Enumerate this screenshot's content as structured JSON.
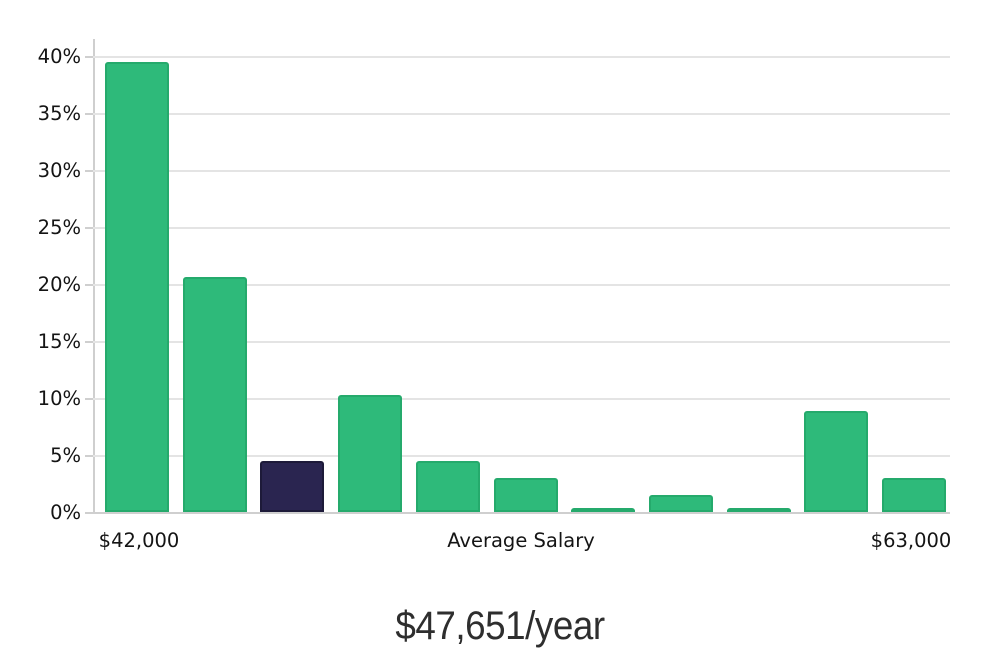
{
  "chart_data": {
    "type": "bar",
    "description": "Salary distribution histogram with one highlighted bucket",
    "values": [
      39.5,
      20.6,
      4.5,
      10.3,
      4.5,
      3.0,
      0.2,
      1.5,
      0.2,
      8.9,
      3.0
    ],
    "value_unit": "percent",
    "highlighted_bar_index": 2,
    "ylim": [
      0,
      40
    ],
    "grid": "horizontal",
    "legend": "none",
    "y_ticks": [
      {
        "value": 0,
        "label": "0%"
      },
      {
        "value": 5,
        "label": "5%"
      },
      {
        "value": 10,
        "label": "10%"
      },
      {
        "value": 15,
        "label": "15%"
      },
      {
        "value": 20,
        "label": "20%"
      },
      {
        "value": 25,
        "label": "25%"
      },
      {
        "value": 30,
        "label": "30%"
      },
      {
        "value": 35,
        "label": "35%"
      },
      {
        "value": 40,
        "label": "40%"
      }
    ],
    "x_tick_labels": [
      {
        "text": "$42,000",
        "anchor": "first-bar"
      },
      {
        "text": "Average Salary",
        "anchor": "center"
      },
      {
        "text": "$63,000",
        "anchor": "last-bar"
      }
    ]
  },
  "callout": {
    "text": "$47,651/year"
  },
  "colors": {
    "background": "#ffffff",
    "bar_fill": "#2eba7a",
    "bar_border": "#25aa6c",
    "highlight_fill": "#2a2550",
    "highlight_border": "#1d1a39",
    "gridline": "#e4e4e4",
    "axis_line": "#cfcfcf",
    "label_text": "#141414",
    "callout_text": "#2e2e2e"
  }
}
